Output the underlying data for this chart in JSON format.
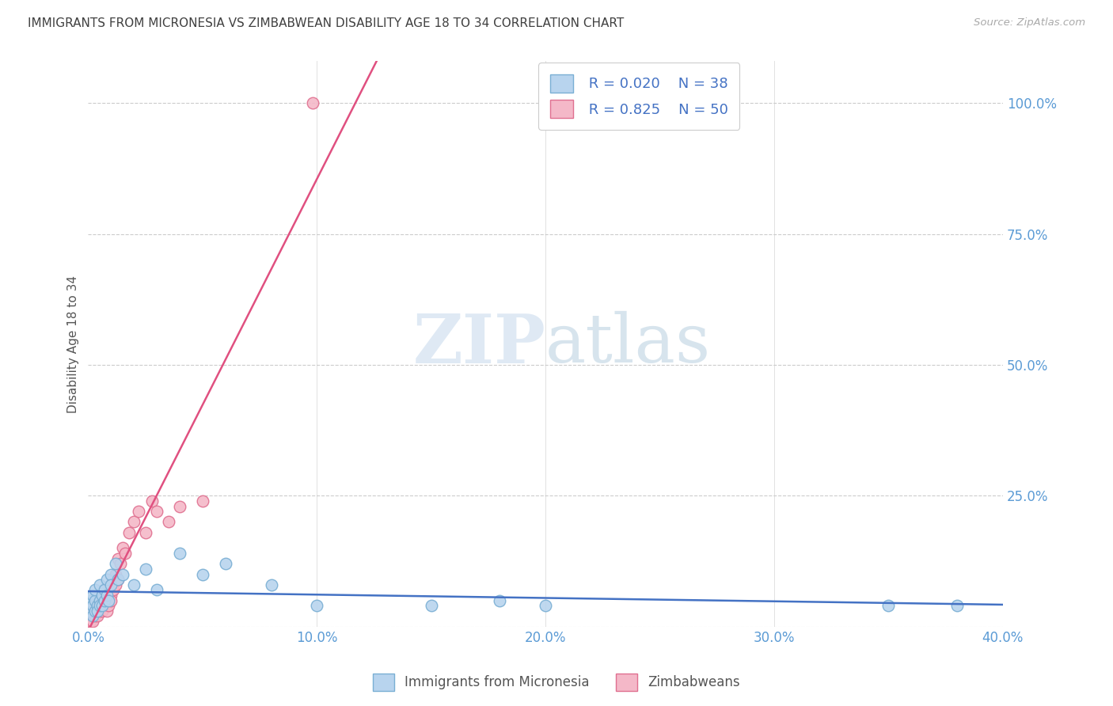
{
  "title": "IMMIGRANTS FROM MICRONESIA VS ZIMBABWEAN DISABILITY AGE 18 TO 34 CORRELATION CHART",
  "source": "Source: ZipAtlas.com",
  "ylabel": "Disability Age 18 to 34",
  "xlim": [
    0.0,
    0.4
  ],
  "ylim": [
    0.0,
    1.08
  ],
  "xticks": [
    0.0,
    0.1,
    0.2,
    0.3,
    0.4
  ],
  "xticklabels": [
    "0.0%",
    "10.0%",
    "20.0%",
    "30.0%",
    "40.0%"
  ],
  "yticks": [
    0.0,
    0.25,
    0.5,
    0.75,
    1.0
  ],
  "yticklabels": [
    "25.0%",
    "50.0%",
    "75.0%",
    "100.0%"
  ],
  "micronesia_color": "#b8d4ee",
  "micronesia_edge_color": "#7aafd4",
  "zimbabwe_color": "#f4b8c8",
  "zimbabwe_edge_color": "#e07090",
  "micronesia_R": 0.02,
  "micronesia_N": 38,
  "zimbabwe_R": 0.825,
  "zimbabwe_N": 50,
  "legend_label_micronesia": "Immigrants from Micronesia",
  "legend_label_zimbabwe": "Zimbabweans",
  "micronesia_line_color": "#4472c4",
  "zimbabwe_line_color": "#e05080",
  "grid_color": "#cccccc",
  "axis_tick_color": "#5b9bd5",
  "title_color": "#404040",
  "legend_R_color": "#4472c4",
  "watermark_zip_color": "#c8d8e8",
  "watermark_atlas_color": "#a8c4d8",
  "micronesia_x": [
    0.001,
    0.001,
    0.002,
    0.002,
    0.002,
    0.003,
    0.003,
    0.003,
    0.004,
    0.004,
    0.005,
    0.005,
    0.005,
    0.006,
    0.006,
    0.007,
    0.007,
    0.008,
    0.008,
    0.009,
    0.01,
    0.01,
    0.012,
    0.013,
    0.015,
    0.02,
    0.025,
    0.03,
    0.04,
    0.05,
    0.06,
    0.08,
    0.1,
    0.15,
    0.18,
    0.2,
    0.35,
    0.38
  ],
  "micronesia_y": [
    0.03,
    0.05,
    0.02,
    0.04,
    0.06,
    0.03,
    0.05,
    0.07,
    0.04,
    0.03,
    0.05,
    0.08,
    0.04,
    0.06,
    0.04,
    0.07,
    0.05,
    0.09,
    0.06,
    0.05,
    0.1,
    0.08,
    0.12,
    0.09,
    0.1,
    0.08,
    0.11,
    0.07,
    0.14,
    0.1,
    0.12,
    0.08,
    0.04,
    0.04,
    0.05,
    0.04,
    0.04,
    0.04
  ],
  "zimbabwe_x": [
    0.0005,
    0.001,
    0.001,
    0.001,
    0.002,
    0.002,
    0.002,
    0.002,
    0.003,
    0.003,
    0.003,
    0.003,
    0.004,
    0.004,
    0.004,
    0.005,
    0.005,
    0.005,
    0.006,
    0.006,
    0.006,
    0.007,
    0.007,
    0.007,
    0.008,
    0.008,
    0.009,
    0.009,
    0.01,
    0.01,
    0.01,
    0.011,
    0.011,
    0.012,
    0.012,
    0.013,
    0.013,
    0.014,
    0.015,
    0.016,
    0.018,
    0.02,
    0.022,
    0.025,
    0.028,
    0.03,
    0.035,
    0.04,
    0.05,
    0.098
  ],
  "zimbabwe_y": [
    0.01,
    0.02,
    0.01,
    0.03,
    0.02,
    0.03,
    0.04,
    0.01,
    0.03,
    0.02,
    0.04,
    0.05,
    0.03,
    0.04,
    0.02,
    0.05,
    0.03,
    0.06,
    0.04,
    0.05,
    0.03,
    0.06,
    0.04,
    0.07,
    0.05,
    0.03,
    0.07,
    0.04,
    0.08,
    0.06,
    0.05,
    0.07,
    0.09,
    0.08,
    0.1,
    0.13,
    0.09,
    0.12,
    0.15,
    0.14,
    0.18,
    0.2,
    0.22,
    0.18,
    0.24,
    0.22,
    0.2,
    0.23,
    0.24,
    1.0
  ]
}
